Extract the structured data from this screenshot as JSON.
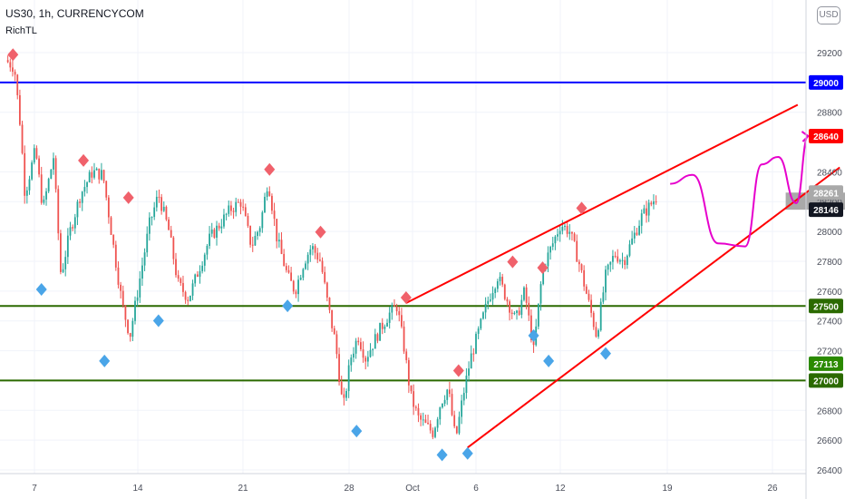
{
  "header": {
    "title": "US30, 1h, CURRENCYCOM",
    "indicator": "RichTL",
    "currency_button": "USD"
  },
  "colors": {
    "up_candle": "#26a69a",
    "down_candle": "#ef5350",
    "channel_line": "#ff0000",
    "resistance_line": "#0000ff",
    "support_line": "#2b6a00",
    "projection_path": "#e600cc",
    "top_marker": "#f0616b",
    "bottom_marker": "#4aa5e8",
    "stop_zone": "#f9c9c9",
    "target_zone": "#c8eac8",
    "entry_zone": "#a9a9a9"
  },
  "chart_data": {
    "type": "candlestick",
    "ylim": [
      26400,
      29300
    ],
    "x_ticks": [
      "7",
      "14",
      "21",
      "28",
      "Oct",
      "6",
      "12",
      "19",
      "26"
    ],
    "y_ticks": [
      26400,
      26600,
      26800,
      27000,
      27200,
      27400,
      27600,
      27800,
      28000,
      28200,
      28400,
      28800,
      29200
    ],
    "price_labels": [
      {
        "value": 29000,
        "label": "29000",
        "color": "#0000ff"
      },
      {
        "value": 28640,
        "label": "28640",
        "color": "#ff0000"
      },
      {
        "value": 28261,
        "label": "28261",
        "color": "#ffffff"
      },
      {
        "value": 28146,
        "label": "28146",
        "color": "#131722"
      },
      {
        "value": 27500,
        "label": "27500",
        "color": "#2b6a00"
      },
      {
        "value": 27113,
        "label": "27113",
        "color": "#2b8a00"
      },
      {
        "value": 27000,
        "label": "27000",
        "color": "#2b6a00"
      }
    ],
    "horizontal_lines": [
      {
        "value": 29000,
        "color": "#0000ff"
      },
      {
        "value": 27500,
        "color": "#2b6a00"
      },
      {
        "value": 27000,
        "color": "#2b6a00"
      }
    ],
    "price_path": [
      {
        "x": 0.0,
        "y": 29150
      },
      {
        "x": 0.6,
        "y": 29100
      },
      {
        "x": 1.0,
        "y": 28700
      },
      {
        "x": 1.3,
        "y": 28250
      },
      {
        "x": 2.0,
        "y": 28550
      },
      {
        "x": 2.5,
        "y": 28150
      },
      {
        "x": 3.2,
        "y": 28500
      },
      {
        "x": 3.7,
        "y": 27700
      },
      {
        "x": 4.3,
        "y": 28000
      },
      {
        "x": 5.0,
        "y": 28250
      },
      {
        "x": 5.8,
        "y": 28400
      },
      {
        "x": 6.5,
        "y": 28380
      },
      {
        "x": 7.2,
        "y": 27900
      },
      {
        "x": 7.8,
        "y": 27500
      },
      {
        "x": 8.3,
        "y": 27300
      },
      {
        "x": 8.9,
        "y": 27650
      },
      {
        "x": 9.6,
        "y": 28050
      },
      {
        "x": 10.2,
        "y": 28250
      },
      {
        "x": 10.9,
        "y": 28000
      },
      {
        "x": 11.5,
        "y": 27650
      },
      {
        "x": 12.2,
        "y": 27550
      },
      {
        "x": 12.9,
        "y": 27750
      },
      {
        "x": 13.6,
        "y": 27950
      },
      {
        "x": 14.3,
        "y": 28050
      },
      {
        "x": 15.0,
        "y": 28150
      },
      {
        "x": 15.7,
        "y": 28200
      },
      {
        "x": 16.4,
        "y": 27900
      },
      {
        "x": 17.0,
        "y": 28050
      },
      {
        "x": 17.5,
        "y": 28350
      },
      {
        "x": 18.1,
        "y": 27950
      },
      {
        "x": 18.8,
        "y": 27700
      },
      {
        "x": 19.3,
        "y": 27600
      },
      {
        "x": 19.9,
        "y": 27800
      },
      {
        "x": 20.4,
        "y": 27900
      },
      {
        "x": 21.0,
        "y": 27800
      },
      {
        "x": 21.5,
        "y": 27500
      },
      {
        "x": 22.0,
        "y": 27250
      },
      {
        "x": 22.5,
        "y": 26800
      },
      {
        "x": 23.0,
        "y": 27150
      },
      {
        "x": 23.5,
        "y": 27300
      },
      {
        "x": 24.0,
        "y": 27150
      },
      {
        "x": 24.5,
        "y": 27250
      },
      {
        "x": 25.0,
        "y": 27350
      },
      {
        "x": 25.6,
        "y": 27450
      },
      {
        "x": 26.1,
        "y": 27500
      },
      {
        "x": 26.6,
        "y": 27200
      },
      {
        "x": 27.0,
        "y": 26900
      },
      {
        "x": 27.5,
        "y": 26750
      },
      {
        "x": 28.0,
        "y": 26700
      },
      {
        "x": 28.5,
        "y": 26650
      },
      {
        "x": 29.0,
        "y": 26850
      },
      {
        "x": 29.5,
        "y": 26950
      },
      {
        "x": 30.0,
        "y": 26600
      },
      {
        "x": 30.5,
        "y": 26900
      },
      {
        "x": 31.0,
        "y": 27150
      },
      {
        "x": 31.6,
        "y": 27350
      },
      {
        "x": 32.2,
        "y": 27550
      },
      {
        "x": 32.8,
        "y": 27700
      },
      {
        "x": 33.4,
        "y": 27550
      },
      {
        "x": 34.0,
        "y": 27400
      },
      {
        "x": 34.6,
        "y": 27600
      },
      {
        "x": 35.2,
        "y": 27200
      },
      {
        "x": 35.8,
        "y": 27750
      },
      {
        "x": 36.4,
        "y": 27900
      },
      {
        "x": 37.0,
        "y": 28050
      },
      {
        "x": 37.6,
        "y": 28000
      },
      {
        "x": 38.2,
        "y": 27800
      },
      {
        "x": 38.8,
        "y": 27550
      },
      {
        "x": 39.4,
        "y": 27300
      },
      {
        "x": 40.0,
        "y": 27700
      },
      {
        "x": 40.6,
        "y": 27850
      },
      {
        "x": 41.2,
        "y": 27800
      },
      {
        "x": 41.8,
        "y": 27950
      },
      {
        "x": 42.4,
        "y": 28100
      },
      {
        "x": 43.0,
        "y": 28180
      },
      {
        "x": 43.5,
        "y": 28250
      }
    ],
    "top_markers": [
      {
        "x": 0.5,
        "y": 29150
      },
      {
        "x": 5.2,
        "y": 28440
      },
      {
        "x": 8.2,
        "y": 28190
      },
      {
        "x": 17.6,
        "y": 28380
      },
      {
        "x": 21.0,
        "y": 27960
      },
      {
        "x": 26.7,
        "y": 27520
      },
      {
        "x": 30.2,
        "y": 27030
      },
      {
        "x": 33.8,
        "y": 27760
      },
      {
        "x": 35.8,
        "y": 27720
      },
      {
        "x": 38.4,
        "y": 28120
      }
    ],
    "bottom_markers": [
      {
        "x": 2.4,
        "y": 27660
      },
      {
        "x": 6.6,
        "y": 27180
      },
      {
        "x": 10.2,
        "y": 27450
      },
      {
        "x": 18.8,
        "y": 27550
      },
      {
        "x": 23.4,
        "y": 26710
      },
      {
        "x": 29.1,
        "y": 26550
      },
      {
        "x": 30.8,
        "y": 26560
      },
      {
        "x": 35.2,
        "y": 27350
      },
      {
        "x": 36.2,
        "y": 27180
      },
      {
        "x": 40.0,
        "y": 27230
      }
    ],
    "channel_upper": {
      "x1": 26.7,
      "y1": 27520,
      "x2": 52.8,
      "y2": 28850
    },
    "channel_lower": {
      "x1": 30.8,
      "y1": 26550,
      "x2": 55.6,
      "y2": 28430
    },
    "projection": [
      {
        "x": 44.3,
        "y": 28320
      },
      {
        "x": 45.8,
        "y": 28380
      },
      {
        "x": 47.5,
        "y": 27920
      },
      {
        "x": 49.3,
        "y": 27900
      },
      {
        "x": 50.4,
        "y": 28450
      },
      {
        "x": 51.5,
        "y": 28500
      },
      {
        "x": 52.7,
        "y": 28190
      },
      {
        "x": 53.5,
        "y": 28640
      }
    ],
    "entry_zone": {
      "x1": 52.0,
      "x2": 58.3,
      "y_high": 28261,
      "y_low": 28146
    },
    "position": {
      "x1": 59.0,
      "x2": 68.5,
      "entry": 28146,
      "stop": 28640,
      "target": 27113
    }
  }
}
